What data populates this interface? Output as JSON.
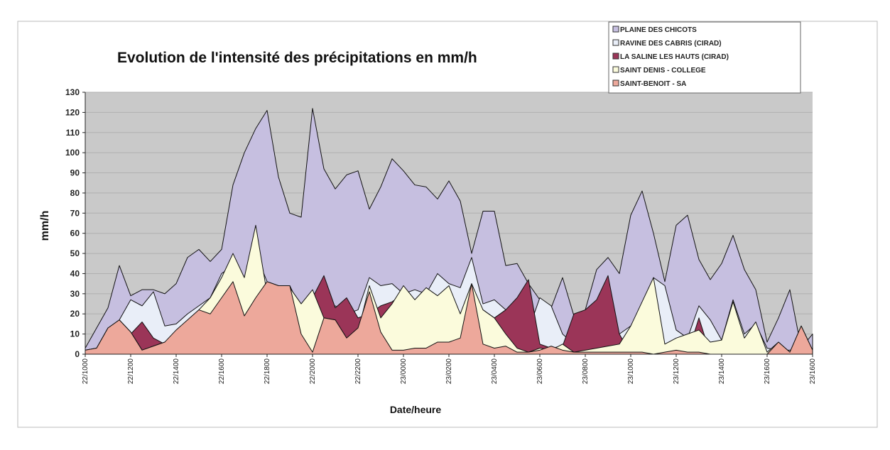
{
  "chart_data": {
    "type": "area",
    "title": "Evolution de l'intensité des précipitations en mm/h",
    "xlabel": "Date/heure",
    "ylabel": "mm/h",
    "categories": [
      "22/1000",
      null,
      null,
      null,
      "22/1200",
      null,
      null,
      null,
      "22/1400",
      null,
      null,
      null,
      "22/1600",
      null,
      null,
      null,
      "22/1800",
      null,
      null,
      null,
      "22/2000",
      null,
      null,
      null,
      "22/2200",
      null,
      null,
      null,
      "23/0000",
      null,
      null,
      null,
      "23/0200",
      null,
      null,
      null,
      "23/0400",
      null,
      null,
      null,
      "23/0600",
      null,
      null,
      null,
      "23/0800",
      null,
      null,
      null,
      "23/1000",
      null,
      null,
      null,
      "23/1200",
      null,
      null,
      null,
      "23/1400",
      null,
      null,
      null,
      "23/1600",
      null,
      null,
      null,
      "23/1600"
    ],
    "ylim": [
      0,
      130
    ],
    "yticks": [
      0,
      10,
      20,
      30,
      40,
      50,
      60,
      70,
      80,
      90,
      100,
      110,
      120,
      130
    ],
    "grid": true,
    "legend": "top-right",
    "series": [
      {
        "name": "PLAINE DES CHICOTS",
        "color": "#c6bfe0",
        "values": [
          3,
          13,
          23,
          44,
          29,
          32,
          32,
          30,
          35,
          48,
          52,
          46,
          52,
          84,
          100,
          112,
          121,
          88,
          70,
          68,
          122,
          92,
          82,
          89,
          91,
          72,
          83,
          97,
          91,
          84,
          83,
          77,
          86,
          76,
          50,
          71,
          71,
          44,
          45,
          35,
          27,
          23,
          38,
          19,
          22,
          42,
          48,
          40,
          69,
          81,
          60,
          36,
          64,
          69,
          47,
          37,
          45,
          59,
          42,
          32,
          6,
          18,
          32,
          3,
          10
        ]
      },
      {
        "name": "RAVINE DES CABRIS (CIRAD)",
        "color": "#e9eef8",
        "values": [
          2,
          3,
          13,
          17,
          27,
          24,
          31,
          14,
          15,
          20,
          24,
          28,
          40,
          44,
          36,
          50,
          36,
          34,
          34,
          22,
          31,
          20,
          24,
          20,
          22,
          38,
          34,
          35,
          30,
          32,
          30,
          40,
          35,
          33,
          48,
          25,
          27,
          22,
          20,
          12,
          28,
          24,
          10,
          5,
          6,
          6,
          6,
          10,
          14,
          22,
          38,
          34,
          12,
          8,
          24,
          17,
          7,
          27,
          10,
          15,
          3,
          2,
          2,
          3,
          3
        ]
      },
      {
        "name": "LA SALINE LES HAUTS  (CIRAD)",
        "color": "#9b3558",
        "values": [
          0,
          0,
          0,
          0,
          10,
          16,
          8,
          5,
          0,
          0,
          0,
          0,
          0,
          0,
          0,
          0,
          0,
          0,
          0,
          0,
          28,
          39,
          23,
          28,
          18,
          20,
          24,
          26,
          30,
          0,
          0,
          0,
          0,
          0,
          20,
          22,
          18,
          22,
          28,
          37,
          5,
          3,
          4,
          20,
          22,
          27,
          39,
          10,
          0,
          0,
          0,
          0,
          0,
          0,
          18,
          0,
          0,
          0,
          0,
          0,
          0,
          0,
          0,
          0,
          0
        ]
      },
      {
        "name": "SAINT DENIS - COLLEGE",
        "color": "#fbfbdc",
        "values": [
          2,
          3,
          13,
          17,
          11,
          2,
          4,
          6,
          10,
          15,
          22,
          28,
          38,
          50,
          38,
          64,
          30,
          34,
          33,
          25,
          32,
          18,
          17,
          8,
          11,
          34,
          18,
          25,
          34,
          27,
          33,
          29,
          34,
          20,
          35,
          22,
          18,
          10,
          3,
          1,
          3,
          2,
          5,
          1,
          2,
          3,
          4,
          5,
          14,
          26,
          38,
          5,
          8,
          10,
          12,
          6,
          7,
          26,
          8,
          16,
          1,
          6,
          1,
          14,
          2
        ]
      },
      {
        "name": "SAINT-BENOIT - SA",
        "color": "#eda89b",
        "values": [
          2,
          3,
          13,
          17,
          11,
          2,
          4,
          6,
          12,
          17,
          22,
          20,
          28,
          36,
          19,
          28,
          36,
          34,
          34,
          10,
          1,
          18,
          17,
          8,
          13,
          31,
          11,
          2,
          2,
          3,
          3,
          6,
          6,
          8,
          35,
          5,
          3,
          4,
          1,
          1,
          2,
          4,
          2,
          1,
          1,
          1,
          1,
          1,
          1,
          1,
          0,
          1,
          2,
          1,
          1,
          0,
          0,
          0,
          0,
          0,
          0,
          6,
          1,
          14,
          2
        ]
      }
    ]
  }
}
